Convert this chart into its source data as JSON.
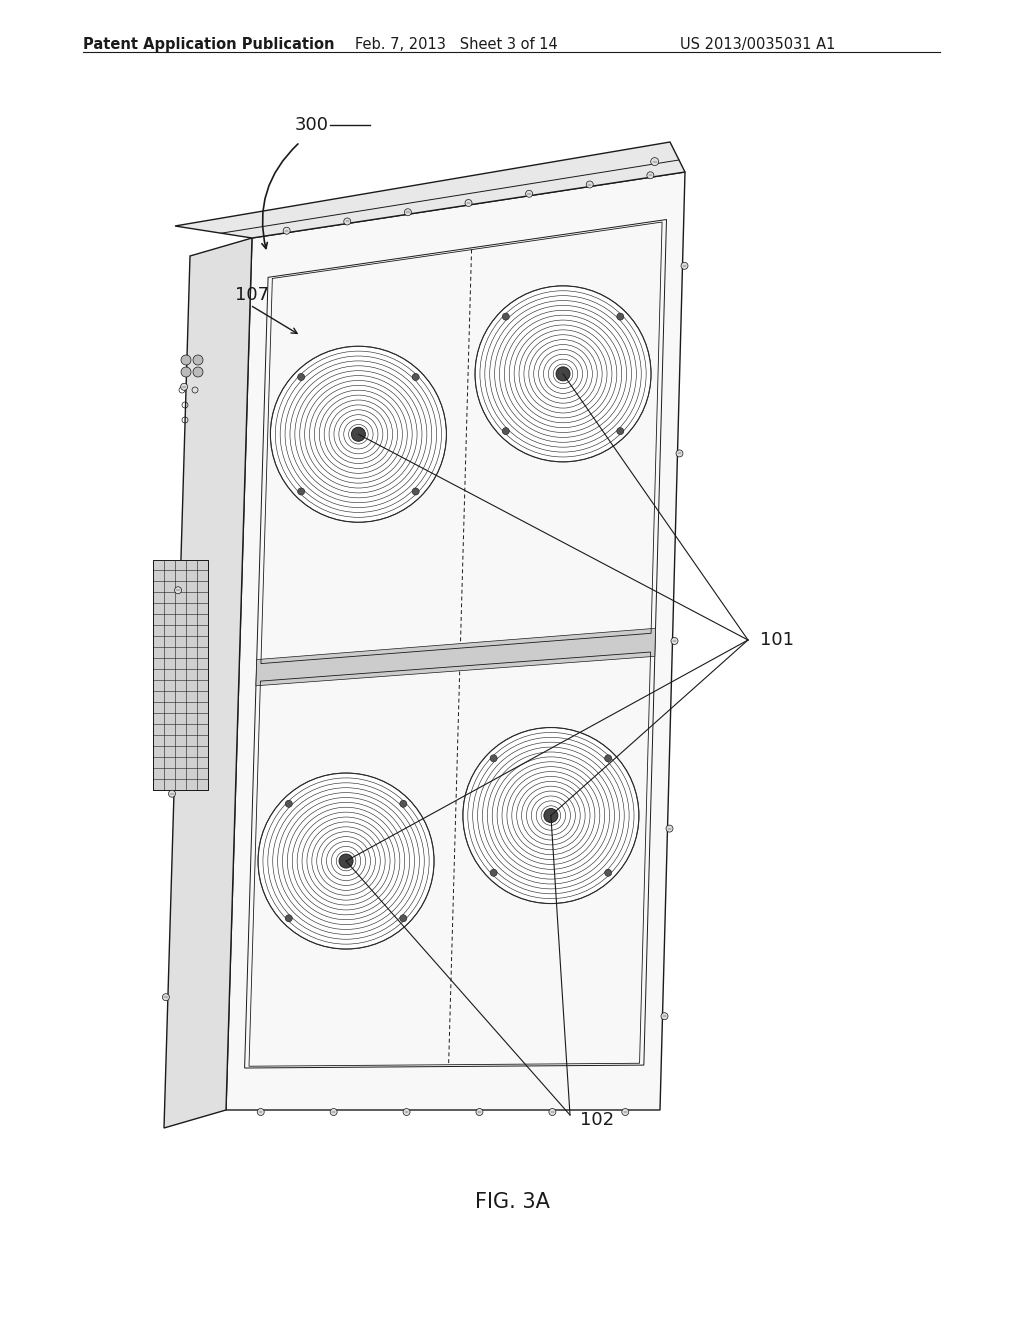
{
  "header_left": "Patent Application Publication",
  "header_mid": "Feb. 7, 2013   Sheet 3 of 14",
  "header_right": "US 2013/0035031 A1",
  "figure_label": "FIG. 3A",
  "label_300": "300",
  "label_107": "107",
  "label_101": "101",
  "label_102": "102",
  "bg_color": "#ffffff",
  "line_color": "#1a1a1a",
  "header_fontsize": 10.5,
  "label_fontsize": 13,
  "fig_label_fontsize": 15
}
